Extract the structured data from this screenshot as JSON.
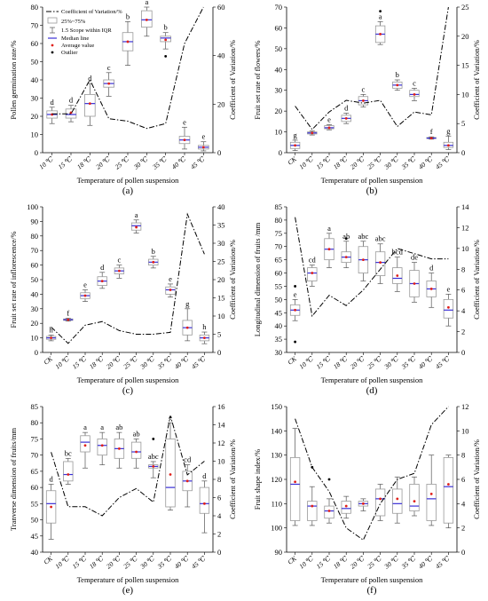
{
  "legend": {
    "cv": "Coefficient of Variation/%",
    "iqr": "25%~75%",
    "scope": "1.5 Scope within IQR",
    "median": "Median line",
    "mean": "Average value",
    "outlier": "Outlier"
  },
  "chart_data": [
    {
      "type": "box",
      "panel_label": "(a)",
      "xlabel": "Temperature of pollen suspension",
      "ylabel": "Pollen germination rate/%",
      "y2label": "Coefficient of Variation/%",
      "categories": [
        "10 ℃",
        "15 ℃",
        "18 ℃",
        "20 ℃",
        "25 ℃",
        "30 ℃",
        "35 ℃",
        "40 ℃",
        "45 ℃"
      ],
      "ylim": [
        0,
        80
      ],
      "yticks": [
        0,
        10,
        20,
        30,
        40,
        50,
        60,
        70,
        80
      ],
      "y2lim": [
        0,
        60
      ],
      "y2ticks": [
        0,
        20,
        40,
        60
      ],
      "boxes": [
        {
          "wlo": 16,
          "q1": 19,
          "median": 21,
          "q3": 23,
          "whi": 25,
          "mean": 21,
          "letter": "d",
          "outliers": []
        },
        {
          "wlo": 17,
          "q1": 19,
          "median": 21,
          "q3": 24,
          "whi": 26,
          "mean": 22,
          "letter": "d",
          "outliers": []
        },
        {
          "wlo": 15,
          "q1": 20,
          "median": 27,
          "q3": 32,
          "whi": 38,
          "mean": 27,
          "letter": "d",
          "outliers": []
        },
        {
          "wlo": 31,
          "q1": 36,
          "median": 38,
          "q3": 40,
          "whi": 44,
          "mean": 38,
          "letter": "c",
          "outliers": []
        },
        {
          "wlo": 48,
          "q1": 56,
          "median": 61,
          "q3": 66,
          "whi": 72,
          "mean": 61,
          "letter": "b",
          "outliers": []
        },
        {
          "wlo": 64,
          "q1": 69,
          "median": 73,
          "q3": 78,
          "whi": 80,
          "mean": 73,
          "letter": "a",
          "outliers": []
        },
        {
          "wlo": 57,
          "q1": 61,
          "median": 63,
          "q3": 64,
          "whi": 66,
          "mean": 62,
          "letter": "b",
          "outliers": [
            53
          ]
        },
        {
          "wlo": 2,
          "q1": 5,
          "median": 7,
          "q3": 9,
          "whi": 14,
          "mean": 7,
          "letter": "e",
          "outliers": []
        },
        {
          "wlo": 1,
          "q1": 2,
          "median": 3,
          "q3": 4,
          "whi": 6,
          "mean": 3,
          "letter": "e",
          "outliers": []
        }
      ],
      "cv": [
        16,
        16,
        30,
        14,
        13,
        10,
        12,
        45,
        62
      ]
    },
    {
      "type": "box",
      "panel_label": "(b)",
      "xlabel": "Temperature of pollen suspension",
      "ylabel": "Fruit set rate of flowers/%",
      "y2label": "Coefficient of Variation/%",
      "categories": [
        "CK",
        "10 ℃",
        "15 ℃",
        "18 ℃",
        "20 ℃",
        "25 ℃",
        "30 ℃",
        "35 ℃",
        "40 ℃",
        "45 ℃"
      ],
      "ylim": [
        0,
        70
      ],
      "yticks": [
        0,
        10,
        20,
        30,
        40,
        50,
        60,
        70
      ],
      "y2lim": [
        0,
        25
      ],
      "y2ticks": [
        0,
        5,
        10,
        15,
        20,
        25
      ],
      "boxes": [
        {
          "wlo": 1,
          "q1": 2,
          "median": 3.5,
          "q3": 5,
          "whi": 6,
          "mean": 3.5,
          "letter": "g",
          "outliers": []
        },
        {
          "wlo": 8.5,
          "q1": 9,
          "median": 9.5,
          "q3": 10,
          "whi": 10.5,
          "mean": 9.5,
          "letter": "",
          "outliers": []
        },
        {
          "wlo": 11,
          "q1": 11.5,
          "median": 12,
          "q3": 13,
          "whi": 13.5,
          "mean": 12,
          "letter": "e",
          "outliers": []
        },
        {
          "wlo": 14,
          "q1": 15,
          "median": 16.5,
          "q3": 18,
          "whi": 19,
          "mean": 16.5,
          "letter": "d",
          "outliers": []
        },
        {
          "wlo": 22,
          "q1": 23,
          "median": 25,
          "q3": 27,
          "whi": 28,
          "mean": 25,
          "letter": "c",
          "outliers": []
        },
        {
          "wlo": 52,
          "q1": 53,
          "median": 57,
          "q3": 61,
          "whi": 63,
          "mean": 57,
          "letter": "a",
          "outliers": [
            68
          ]
        },
        {
          "wlo": 30,
          "q1": 31,
          "median": 32.5,
          "q3": 34,
          "whi": 35,
          "mean": 32.5,
          "letter": "b",
          "outliers": []
        },
        {
          "wlo": 25,
          "q1": 27,
          "median": 28,
          "q3": 30,
          "whi": 31,
          "mean": 28,
          "letter": "c",
          "outliers": []
        },
        {
          "wlo": 6.5,
          "q1": 6.8,
          "median": 7,
          "q3": 7.3,
          "whi": 7.6,
          "mean": 7,
          "letter": "f",
          "outliers": []
        },
        {
          "wlo": 1.5,
          "q1": 2.5,
          "median": 3.5,
          "q3": 5,
          "whi": 8,
          "mean": 3.5,
          "letter": "g",
          "outliers": []
        }
      ],
      "cv": [
        8,
        4,
        7,
        9,
        8.5,
        9,
        4.5,
        7,
        6.5,
        26
      ]
    },
    {
      "type": "box",
      "panel_label": "(c)",
      "xlabel": "Temperature of pollen suspension",
      "ylabel": "Fruit set rate of inflorescence/%",
      "y2label": "Coefficient of Variation/%",
      "categories": [
        "CK",
        "10 ℃",
        "15 ℃",
        "18 ℃",
        "20 ℃",
        "25 ℃",
        "30 ℃",
        "35 ℃",
        "40 ℃",
        "45 ℃"
      ],
      "ylim": [
        0,
        100
      ],
      "yticks": [
        0,
        10,
        20,
        30,
        40,
        50,
        60,
        70,
        80,
        90,
        100
      ],
      "y2lim": [
        0,
        40
      ],
      "y2ticks": [
        0,
        5,
        10,
        15,
        20,
        25,
        30,
        35,
        40
      ],
      "boxes": [
        {
          "wlo": 8,
          "q1": 9,
          "median": 10,
          "q3": 11,
          "whi": 12,
          "mean": 10,
          "letter": "h",
          "outliers": []
        },
        {
          "wlo": 21.5,
          "q1": 22,
          "median": 22.5,
          "q3": 23,
          "whi": 23.5,
          "mean": 22.5,
          "letter": "f",
          "outliers": []
        },
        {
          "wlo": 35,
          "q1": 37,
          "median": 39,
          "q3": 41,
          "whi": 43,
          "mean": 39,
          "letter": "e",
          "outliers": []
        },
        {
          "wlo": 44,
          "q1": 46,
          "median": 49,
          "q3": 52,
          "whi": 55,
          "mean": 49,
          "letter": "d",
          "outliers": []
        },
        {
          "wlo": 51,
          "q1": 54,
          "median": 56,
          "q3": 58,
          "whi": 60,
          "mean": 56,
          "letter": "c",
          "outliers": []
        },
        {
          "wlo": 82,
          "q1": 84,
          "median": 87,
          "q3": 89,
          "whi": 91,
          "mean": 86,
          "letter": "a",
          "outliers": []
        },
        {
          "wlo": 58,
          "q1": 60,
          "median": 62,
          "q3": 64,
          "whi": 66,
          "mean": 62,
          "letter": "b",
          "outliers": []
        },
        {
          "wlo": 38,
          "q1": 40,
          "median": 43,
          "q3": 45,
          "whi": 47,
          "mean": 43,
          "letter": "e",
          "outliers": []
        },
        {
          "wlo": 8,
          "q1": 12,
          "median": 17,
          "q3": 22,
          "whi": 30,
          "mean": 17,
          "letter": "g",
          "outliers": []
        },
        {
          "wlo": 6,
          "q1": 8,
          "median": 10,
          "q3": 12,
          "whi": 14,
          "mean": 10,
          "letter": "h",
          "outliers": []
        }
      ],
      "cv": [
        7,
        2.5,
        7.5,
        8.5,
        6,
        5,
        5,
        5.5,
        38,
        27
      ]
    },
    {
      "type": "box",
      "panel_label": "(d)",
      "xlabel": "Temperature of pollen suspension",
      "ylabel": "Longitudinal dimension of fruits /mm",
      "y2label": "Coefficient of Variation/%",
      "categories": [
        "CK",
        "10 ℃",
        "15 ℃",
        "18 ℃",
        "20 ℃",
        "25 ℃",
        "30 ℃",
        "35 ℃",
        "40 ℃",
        "45 ℃"
      ],
      "ylim": [
        30,
        85
      ],
      "yticks": [
        30,
        35,
        40,
        45,
        50,
        55,
        60,
        65,
        70,
        75,
        80,
        85
      ],
      "y2lim": [
        0,
        14
      ],
      "y2ticks": [
        0,
        2,
        4,
        6,
        8,
        10,
        12,
        14
      ],
      "boxes": [
        {
          "wlo": 42,
          "q1": 44,
          "median": 46,
          "q3": 48,
          "whi": 50,
          "mean": 46,
          "letter": "e",
          "outliers": [
            55,
            34
          ]
        },
        {
          "wlo": 55,
          "q1": 57,
          "median": 60,
          "q3": 62,
          "whi": 63,
          "mean": 60,
          "letter": "cd",
          "outliers": []
        },
        {
          "wlo": 62,
          "q1": 65,
          "median": 69,
          "q3": 73,
          "whi": 75,
          "mean": 69,
          "letter": "a",
          "outliers": []
        },
        {
          "wlo": 62,
          "q1": 64,
          "median": 66,
          "q3": 68,
          "whi": 72,
          "mean": 66,
          "letter": "ab",
          "outliers": [
            73
          ]
        },
        {
          "wlo": 57,
          "q1": 60,
          "median": 65,
          "q3": 70,
          "whi": 72,
          "mean": 65,
          "letter": "abc",
          "outliers": []
        },
        {
          "wlo": 56,
          "q1": 59,
          "median": 64,
          "q3": 68,
          "whi": 71,
          "mean": 64,
          "letter": "abc",
          "outliers": []
        },
        {
          "wlo": 53,
          "q1": 56,
          "median": 58,
          "q3": 62,
          "whi": 66,
          "mean": 59,
          "letter": "bcd",
          "outliers": []
        },
        {
          "wlo": 49,
          "q1": 51,
          "median": 56,
          "q3": 61,
          "whi": 64,
          "mean": 56,
          "letter": "de",
          "outliers": []
        },
        {
          "wlo": 47,
          "q1": 51,
          "median": 54,
          "q3": 57,
          "whi": 60,
          "mean": 54,
          "letter": "d",
          "outliers": []
        },
        {
          "wlo": 40,
          "q1": 43,
          "median": 46,
          "q3": 50,
          "whi": 52,
          "mean": 47,
          "letter": "e",
          "outliers": []
        }
      ],
      "cv": [
        13,
        3.5,
        5.5,
        4.5,
        6,
        8,
        10,
        9.5,
        9,
        9
      ]
    },
    {
      "type": "box",
      "panel_label": "(e)",
      "xlabel": "Temperature of pollen suspension",
      "ylabel": "Tranverse dimension of fruits/mm",
      "y2label": "Coefficient of Variation/%",
      "categories": [
        "CK",
        "10 ℃",
        "15 ℃",
        "18 ℃",
        "20 ℃",
        "25 ℃",
        "30 ℃",
        "35 ℃",
        "40 ℃",
        "45 ℃"
      ],
      "ylim": [
        40,
        85
      ],
      "yticks": [
        40,
        45,
        50,
        55,
        60,
        65,
        70,
        75,
        80,
        85
      ],
      "y2lim": [
        0,
        16
      ],
      "y2ticks": [
        0,
        2,
        4,
        6,
        8,
        10,
        12,
        14,
        16
      ],
      "boxes": [
        {
          "wlo": 44,
          "q1": 49,
          "median": 55,
          "q3": 59,
          "whi": 61,
          "mean": 54,
          "letter": "d",
          "outliers": []
        },
        {
          "wlo": 61,
          "q1": 62,
          "median": 64,
          "q3": 68,
          "whi": 69,
          "mean": 64,
          "letter": "bc",
          "outliers": []
        },
        {
          "wlo": 66,
          "q1": 71,
          "median": 74,
          "q3": 76,
          "whi": 77,
          "mean": 73,
          "letter": "a",
          "outliers": []
        },
        {
          "wlo": 67,
          "q1": 70,
          "median": 73,
          "q3": 75,
          "whi": 77,
          "mean": 73,
          "letter": "a",
          "outliers": []
        },
        {
          "wlo": 66,
          "q1": 69,
          "median": 72,
          "q3": 75,
          "whi": 77,
          "mean": 72,
          "letter": "ab",
          "outliers": []
        },
        {
          "wlo": 66,
          "q1": 69,
          "median": 71,
          "q3": 74,
          "whi": 75,
          "mean": 71,
          "letter": "ab",
          "outliers": []
        },
        {
          "wlo": 63,
          "q1": 66,
          "median": 66.5,
          "q3": 67,
          "whi": 68,
          "mean": 66.5,
          "letter": "abc",
          "outliers": [
            75
          ]
        },
        {
          "wlo": 53,
          "q1": 54,
          "median": 60,
          "q3": 75,
          "whi": 80,
          "mean": 64,
          "letter": "e",
          "outliers": []
        },
        {
          "wlo": 54,
          "q1": 59,
          "median": 62,
          "q3": 65,
          "whi": 67,
          "mean": 62,
          "letter": "cd",
          "outliers": []
        },
        {
          "wlo": 46,
          "q1": 52,
          "median": 55,
          "q3": 60,
          "whi": 62,
          "mean": 55,
          "letter": "d",
          "outliers": []
        }
      ],
      "cv": [
        11,
        5,
        5,
        4,
        6,
        7,
        5.5,
        15,
        8.5,
        10
      ]
    },
    {
      "type": "box",
      "panel_label": "(f)",
      "xlabel": "Temperature of pollen suspension",
      "ylabel": "Fruit shape index/%",
      "y2label": "Coefficient of Variation/%",
      "categories": [
        "CK",
        "10 ℃",
        "15 ℃",
        "18 ℃",
        "20 ℃",
        "25 ℃",
        "30 ℃",
        "35 ℃",
        "40 ℃",
        "45 ℃"
      ],
      "ylim": [
        90,
        150
      ],
      "yticks": [
        90,
        100,
        110,
        120,
        130,
        140,
        150
      ],
      "y2lim": [
        0,
        12
      ],
      "y2ticks": [
        0,
        2,
        4,
        6,
        8,
        10,
        12
      ],
      "boxes": [
        {
          "wlo": 101,
          "q1": 103,
          "median": 118,
          "q3": 129,
          "whi": 141,
          "mean": 119,
          "letter": "",
          "outliers": []
        },
        {
          "wlo": 101,
          "q1": 103,
          "median": 109,
          "q3": 111,
          "whi": 117,
          "mean": 109,
          "letter": "",
          "outliers": [
            125
          ]
        },
        {
          "wlo": 102,
          "q1": 104,
          "median": 107,
          "q3": 109,
          "whi": 112,
          "mean": 107,
          "letter": "",
          "outliers": [
            120
          ]
        },
        {
          "wlo": 104,
          "q1": 106,
          "median": 108,
          "q3": 111,
          "whi": 113,
          "mean": 109,
          "letter": "",
          "outliers": []
        },
        {
          "wlo": 107,
          "q1": 109,
          "median": 110,
          "q3": 111,
          "whi": 112,
          "mean": 110,
          "letter": "",
          "outliers": []
        },
        {
          "wlo": 103,
          "q1": 105,
          "median": 112,
          "q3": 116,
          "whi": 118,
          "mean": 112,
          "letter": "",
          "outliers": []
        },
        {
          "wlo": 102,
          "q1": 106,
          "median": 110,
          "q3": 116,
          "whi": 121,
          "mean": 112,
          "letter": "",
          "outliers": []
        },
        {
          "wlo": 105,
          "q1": 107,
          "median": 109,
          "q3": 118,
          "whi": 121,
          "mean": 111,
          "letter": "",
          "outliers": []
        },
        {
          "wlo": 101,
          "q1": 103,
          "median": 112,
          "q3": 118,
          "whi": 130,
          "mean": 114,
          "letter": "",
          "outliers": []
        },
        {
          "wlo": 100,
          "q1": 102,
          "median": 117,
          "q3": 129,
          "whi": 130,
          "mean": 118,
          "letter": "",
          "outliers": []
        }
      ],
      "cv": [
        11,
        7,
        5,
        2,
        1,
        4,
        6,
        6.5,
        10.5,
        12
      ]
    }
  ]
}
